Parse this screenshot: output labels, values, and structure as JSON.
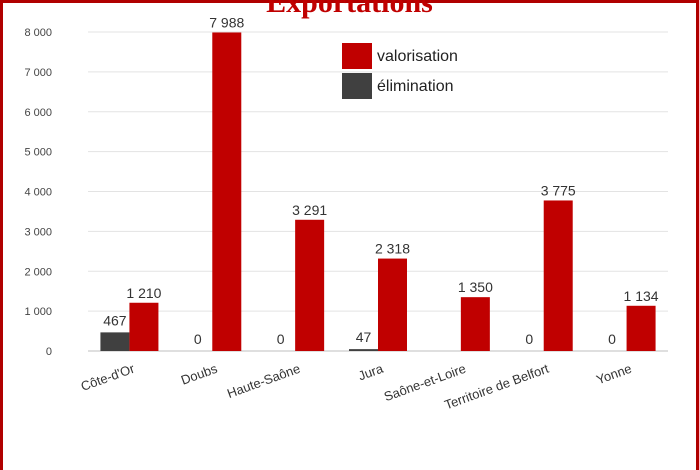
{
  "chart_data": {
    "type": "bar",
    "title": "Exportations",
    "categories": [
      "Côte-d'Or",
      "Doubs",
      "Haute-Saône",
      "Jura",
      "Saône-et-Loire",
      "Territoire de Belfort",
      "Yonne"
    ],
    "series": [
      {
        "name": "élimination",
        "color": "#404040",
        "values": [
          467,
          0,
          0,
          47,
          null,
          0,
          0
        ],
        "labels": [
          "467",
          "0",
          "0",
          "47",
          "",
          "0",
          "0"
        ]
      },
      {
        "name": "valorisation",
        "color": "#c00000",
        "values": [
          1210,
          7988,
          3291,
          2318,
          1350,
          3775,
          1134
        ],
        "labels": [
          "1 210",
          "7 988",
          "3 291",
          "2 318",
          "1 350",
          "3 775",
          "1 134"
        ]
      }
    ],
    "ylim": [
      0,
      8000
    ],
    "yticks": [
      0,
      1000,
      2000,
      3000,
      4000,
      5000,
      6000,
      7000,
      8000
    ],
    "ytick_labels": [
      "0",
      "1 000",
      "2 000",
      "3 000",
      "4 000",
      "5 000",
      "6 000",
      "7 000",
      "8 000"
    ],
    "grid": true,
    "legend_position": "top-right",
    "legend_order": [
      "valorisation",
      "élimination"
    ],
    "xlabel": "",
    "ylabel": ""
  }
}
